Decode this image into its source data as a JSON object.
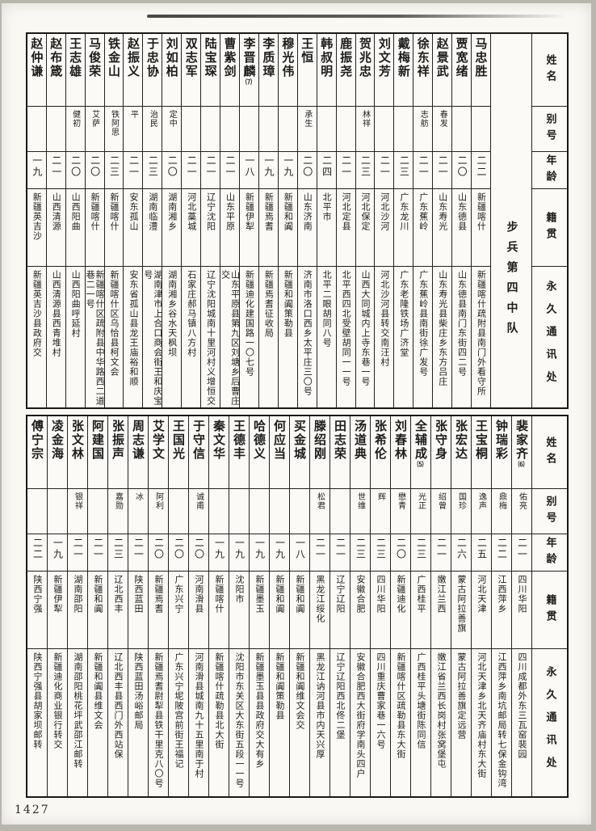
{
  "page": {
    "number": "1427"
  },
  "headers": {
    "name": "姓名",
    "alias": "别号",
    "age": "年龄",
    "native": "籍贯",
    "address": "永久通讯处"
  },
  "sections": [
    {
      "unit_label": "步兵第四中队",
      "people": [
        {
          "name": "马忠胜",
          "note": "",
          "alias": "",
          "age": "二二",
          "native": "新疆喀什",
          "address": "新疆喀什疏附县南门外看守所"
        },
        {
          "name": "贾宽绪",
          "note": "",
          "alias": "",
          "age": "二〇",
          "native": "山东德县",
          "address": "山东德县南门东街四二号"
        },
        {
          "name": "赵景武",
          "note": "",
          "alias": "春发",
          "age": "二一",
          "native": "山东寿光",
          "address": "山东寿光县柴庄乡东方吕庄"
        },
        {
          "name": "徐东祥",
          "note": "",
          "alias": "志舫",
          "age": "二一",
          "native": "广东蕉岭",
          "address": "广东蕉岭县南街徐广发号"
        },
        {
          "name": "戴梅新",
          "note": "",
          "alias": "",
          "age": "二三",
          "native": "广东龙川",
          "address": "广东老隆铁场广济堂"
        },
        {
          "name": "刘文芳",
          "note": "",
          "alias": "",
          "age": "二一",
          "native": "河北沙河",
          "address": "河北沙河县转交南汪村"
        },
        {
          "name": "贺兆忠",
          "note": "",
          "alias": "林祥",
          "age": "二三",
          "native": "河北保定",
          "address": "山西大同城内上寺东巷一号"
        },
        {
          "name": "鹿振尧",
          "note": "",
          "alias": "",
          "age": "二一",
          "native": "河北定县",
          "address": "北平西四北受壁胡同一一号"
        },
        {
          "name": "韩叔明",
          "note": "",
          "alias": "",
          "age": "二四",
          "native": "北平市",
          "address": "北平二眼胡同八号"
        },
        {
          "name": "王恒",
          "note": "",
          "alias": "承生",
          "age": "二〇",
          "native": "山东济南",
          "address": "济南市洛口西乡太平庄三〇号"
        },
        {
          "name": "穆光伟",
          "note": "",
          "alias": "",
          "age": "一九",
          "native": "新疆和阗",
          "address": "新疆和阗策勒县"
        },
        {
          "name": "李质璋",
          "note": "",
          "alias": "",
          "age": "一九",
          "native": "新疆焉耆",
          "address": "新疆焉耆征收局"
        },
        {
          "name": "李晋麟",
          "note": "⑺",
          "alias": "",
          "age": "一八",
          "native": "新疆伊犁",
          "address": "新疆迪化建国路一〇七号"
        },
        {
          "name": "曹紫剑",
          "note": "",
          "alias": "",
          "age": "二一",
          "native": "山东平原",
          "address": "山东平原县第九区刘塘乡后曹庄交"
        },
        {
          "name": "陆宝琛",
          "note": "",
          "alias": "",
          "age": "二一",
          "native": "辽宁沈阳",
          "address": "辽宁沈阳城南十里河村义增恒交"
        },
        {
          "name": "双志军",
          "note": "",
          "alias": "",
          "age": "二一",
          "native": "河北藁城",
          "address": "石家庄郝马镇八方村"
        },
        {
          "name": "刘如柏",
          "note": "",
          "alias": "定中",
          "age": "二〇",
          "native": "湖南湘乡",
          "address": "湖南湘乡谷水天枫坝"
        },
        {
          "name": "于忠协",
          "note": "",
          "alias": "治民",
          "age": "二三",
          "native": "湖南临澧",
          "address": "湖南津市上合口商会街王和庆宝号"
        },
        {
          "name": "赵振义",
          "note": "",
          "alias": "平",
          "age": "二一",
          "native": "安东孤山",
          "address": "安东省孤山县龙王庙裕和顺"
        },
        {
          "name": "铁金山",
          "note": "",
          "alias": "铁阿思",
          "age": "二三",
          "native": "新疆喀什",
          "address": "新疆喀什区乌恰县柯文会"
        },
        {
          "name": "马俊荣",
          "note": "",
          "alias": "艾萨",
          "age": "二〇",
          "native": "新疆喀什",
          "address": "新疆喀什区疏附县中华路西二道巷二一号"
        },
        {
          "name": "王志雄",
          "note": "",
          "alias": "健初",
          "age": "二〇",
          "native": "山西阳曲",
          "address": "山西阳曲呼延村"
        },
        {
          "name": "赵布箴",
          "note": "",
          "alias": "",
          "age": "二一",
          "native": "山西清源",
          "address": "山西清源县西青堆村"
        },
        {
          "name": "赵仲谦",
          "note": "",
          "alias": "",
          "age": "一九",
          "native": "新疆英吉沙",
          "address": "新疆英吉沙县政府交"
        }
      ]
    },
    {
      "unit_label": "",
      "people": [
        {
          "name": "裴家齐",
          "note": "⑹",
          "alias": "佑亮",
          "age": "二一",
          "native": "四川华阳",
          "address": "四川成都外东三瓦窑裴园"
        },
        {
          "name": "钟瑞彩",
          "note": "",
          "alias": "鼎梅",
          "age": "二二",
          "native": "江西萍乡",
          "address": "江西萍乡南坑邮局转七保金钩湾"
        },
        {
          "name": "王宝桐",
          "note": "",
          "alias": "逸声",
          "age": "二五",
          "native": "河北天津",
          "address": "河北天津乡北天齐庙村东大街"
        },
        {
          "name": "张宏达",
          "note": "",
          "alias": "国珍",
          "age": "二六",
          "native": "蒙古阿拉善旗",
          "address": "蒙古阿拉善旗定远营"
        },
        {
          "name": "张守身",
          "note": "",
          "alias": "绍曾",
          "age": "二一",
          "native": "嫩江兰西",
          "address": "嫩江省兰西长岗村张窝堡屯"
        },
        {
          "name": "全辅成",
          "note": "⑸",
          "alias": "光正",
          "age": "二三",
          "native": "广西桂平",
          "address": "广西桂平头塘街陈同信"
        },
        {
          "name": "刘春林",
          "note": "",
          "alias": "懋青",
          "age": "二〇",
          "native": "新疆迪化",
          "address": "新疆喀什区疏勒县东大街"
        },
        {
          "name": "张希伦",
          "note": "",
          "alias": "辉",
          "age": "二三",
          "native": "四川华阳",
          "address": "四川重庆曹家巷一六号"
        },
        {
          "name": "汤道典",
          "note": "",
          "alias": "世维",
          "age": "二三",
          "native": "安徽合肥",
          "address": "安徽合肥西大街府学南头四户"
        },
        {
          "name": "田志荣",
          "note": "",
          "alias": "",
          "age": "二一",
          "native": "辽宁辽阳",
          "address": "辽宁辽阳西北佟二堡"
        },
        {
          "name": "滕绍刚",
          "note": "",
          "alias": "松君",
          "age": "二一",
          "native": "黑龙江绥化",
          "address": "黑龙江讷河县市内天兴厚"
        },
        {
          "name": "买金城",
          "note": "",
          "alias": "",
          "age": "一八",
          "native": "新疆和阗",
          "address": "新疆和阗维文会交"
        },
        {
          "name": "何应当",
          "note": "",
          "alias": "",
          "age": "一九",
          "native": "新疆和阗",
          "address": "新疆和阗策勒县"
        },
        {
          "name": "哈德义",
          "note": "",
          "alias": "",
          "age": "一九",
          "native": "新疆墨玉",
          "address": "新疆墨玉县县政府交大有乡"
        },
        {
          "name": "王德丰",
          "note": "",
          "alias": "",
          "age": "一九",
          "native": "沈阳市",
          "address": "沈阳市东关区大东街五段一一号"
        },
        {
          "name": "秦文华",
          "note": "",
          "alias": "",
          "age": "一九",
          "native": "新疆喀什",
          "address": "新疆喀什疏勒县北大街"
        },
        {
          "name": "于守信",
          "note": "",
          "alias": "诚甫",
          "age": "二〇",
          "native": "河南滑县",
          "address": "河南滑县城南九十五里南于村"
        },
        {
          "name": "王国光",
          "note": "",
          "alias": "",
          "age": "二〇",
          "native": "广东兴宁",
          "address": "广东兴宁坭陂宫前街王福记"
        },
        {
          "name": "艾学文",
          "note": "",
          "alias": "阿利",
          "age": "二〇",
          "native": "新疆焉耆",
          "address": "新疆焉耆尉犁县铁干里克八〇号"
        },
        {
          "name": "周志谦",
          "note": "",
          "alias": "冰",
          "age": "二一",
          "native": "陕西蓝田",
          "address": "陕西蓝田汤峪邮局"
        },
        {
          "name": "张振声",
          "note": "",
          "alias": "嘉勋",
          "age": "二三",
          "native": "辽北西丰",
          "address": "辽北西丰县西门外西站保"
        },
        {
          "name": "阿建国",
          "note": "",
          "alias": "",
          "age": "二一",
          "native": "新疆和阗",
          "address": "新疆和阗县维文会"
        },
        {
          "name": "张文林",
          "note": "",
          "alias": "银祥",
          "age": "二一",
          "native": "湖南邵阳",
          "address": "湖南邵阳桃花坪武邵江邮转"
        },
        {
          "name": "凌金海",
          "note": "",
          "alias": "",
          "age": "一九",
          "native": "新疆伊犁",
          "address": "新疆迪化商业银行转交"
        },
        {
          "name": "傅宁宗",
          "note": "",
          "alias": "",
          "age": "二二",
          "native": "陕西宁强",
          "address": "陕西宁强县胡家坝邮转"
        }
      ]
    }
  ]
}
